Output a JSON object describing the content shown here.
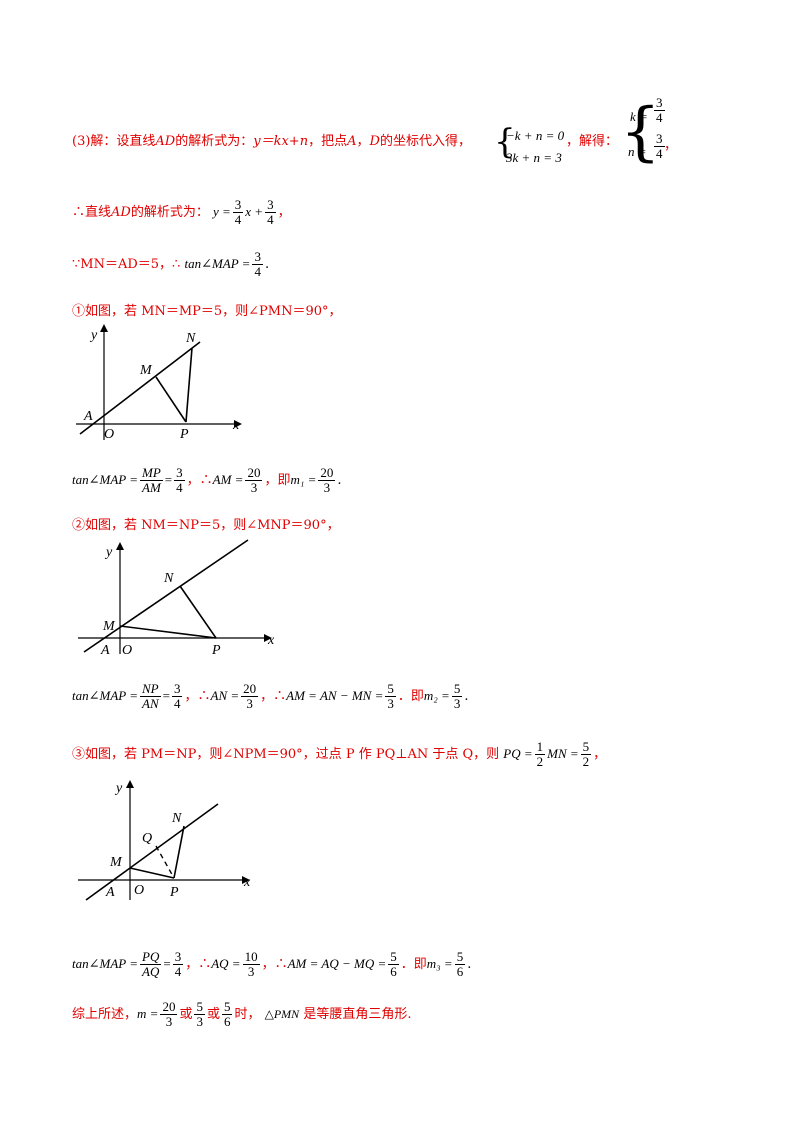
{
  "part3": {
    "prefix": "(3)解：设直线",
    "AD": "AD",
    "mid1": "的解析式为：",
    "formula": "y＝kx+n",
    "mid2": "，把点",
    "A": "A",
    "comma": "，",
    "D": "D",
    "mid3": "的坐标代入得，",
    "sys_eq1": "−k + n = 0",
    "sys_eq2": "3k + n = 3",
    "mid4": "，解得：",
    "k_lhs": "k =",
    "k_num": "3",
    "k_den": "4",
    "n_lhs": "n =",
    "n_num": "3",
    "n_den": "4",
    "end": "，"
  },
  "line2": {
    "text": "∴直线",
    "AD": "AD",
    "mid": "的解析式为：",
    "lhs": "y =",
    "f1_num": "3",
    "f1_den": "4",
    "x_plus": "x +",
    "f2_num": "3",
    "f2_den": "4",
    "end": "，"
  },
  "line3": {
    "text": "∵MN＝AD＝5，∴",
    "lhs": "tan∠MAP =",
    "f_num": "3",
    "f_den": "4",
    "end": "."
  },
  "case1": {
    "text": "①如图，若 MN＝MP＝5，则∠PMN＝90°，",
    "lhs": "tan∠MAP =",
    "f1_num": "MP",
    "f1_den": "AM",
    "eq": "=",
    "f2_num": "3",
    "f2_den": "4",
    "sep1": "，∴",
    "am": "AM =",
    "f3_num": "20",
    "f3_den": "3",
    "sep2": "，即",
    "m1": "m₁ =",
    "f4_num": "20",
    "f4_den": "3",
    "end": "."
  },
  "case2": {
    "text": "②如图，若 NM＝NP＝5，则∠MNP＝90°，",
    "lhs": "tan∠MAP =",
    "f1_num": "NP",
    "f1_den": "AN",
    "eq": "=",
    "f2_num": "3",
    "f2_den": "4",
    "sep1": "，∴",
    "an": "AN =",
    "f3_num": "20",
    "f3_den": "3",
    "sep2": "，∴",
    "am": "AM = AN − MN =",
    "f4_num": "5",
    "f4_den": "3",
    "sep3": "．即",
    "m2": "m₂ =",
    "f5_num": "5",
    "f5_den": "3",
    "end": "."
  },
  "case3": {
    "text": "③如图，若 PM＝NP，则∠NPM＝90°，过点 P 作 PQ⊥AN 于点 Q，则",
    "pq": "PQ =",
    "f1_num": "1",
    "f1_den": "2",
    "mn": "MN =",
    "f2_num": "5",
    "f2_den": "2",
    "end": "，",
    "lhs": "tan∠MAP =",
    "f3_num": "PQ",
    "f3_den": "AQ",
    "eq": "=",
    "f4_num": "3",
    "f4_den": "4",
    "sep1": "，∴",
    "aq": "AQ =",
    "f5_num": "10",
    "f5_den": "3",
    "sep2": "，∴",
    "am": "AM = AQ − MQ =",
    "f6_num": "5",
    "f6_den": "6",
    "sep3": "．即",
    "m3": "m₃ =",
    "f7_num": "5",
    "f7_den": "6",
    "end2": "."
  },
  "summary": {
    "text": "综上所述，",
    "m": "m =",
    "f1_num": "20",
    "f1_den": "3",
    "or1": "或",
    "f2_num": "5",
    "f2_den": "3",
    "or2": "或",
    "f3_num": "5",
    "f3_den": "6",
    "when": "时，",
    "tri": "△PMN",
    "end": "是等腰直角三角形."
  },
  "figure_labels": {
    "y": "y",
    "x": "x",
    "O": "O",
    "A": "A",
    "M": "M",
    "N": "N",
    "P": "P",
    "Q": "Q"
  }
}
